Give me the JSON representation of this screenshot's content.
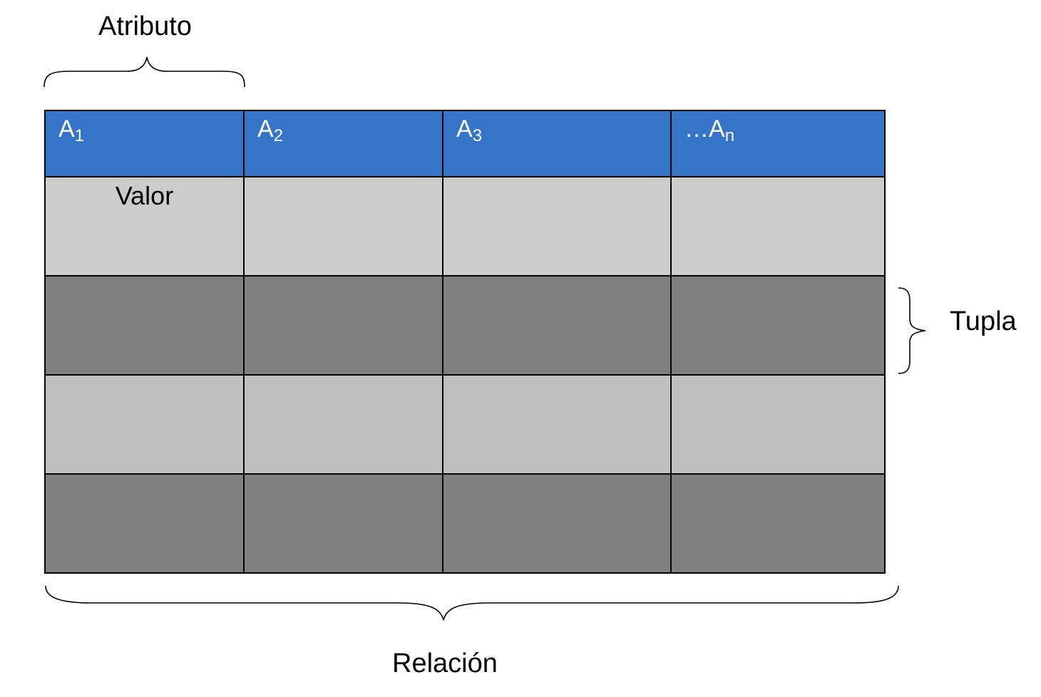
{
  "labels": {
    "attribute": "Atributo",
    "tuple": "Tupla",
    "relation": "Relación"
  },
  "table": {
    "headers": [
      {
        "name": "A",
        "subscript": "1"
      },
      {
        "name": "A",
        "subscript": "2"
      },
      {
        "name": "A",
        "subscript": "3"
      },
      {
        "name": "…A",
        "subscript": "n"
      }
    ],
    "rows": [
      {
        "cells": [
          "Valor",
          "",
          "",
          ""
        ]
      },
      {
        "cells": [
          "",
          "",
          "",
          ""
        ]
      },
      {
        "cells": [
          "",
          "",
          "",
          ""
        ]
      },
      {
        "cells": [
          "",
          "",
          "",
          ""
        ]
      }
    ]
  },
  "colors": {
    "header": "#3674C8",
    "row_light_1": "#CCCCCC",
    "row_dark": "#808080",
    "row_light_2": "#C0C0C0",
    "border": "#000000"
  }
}
